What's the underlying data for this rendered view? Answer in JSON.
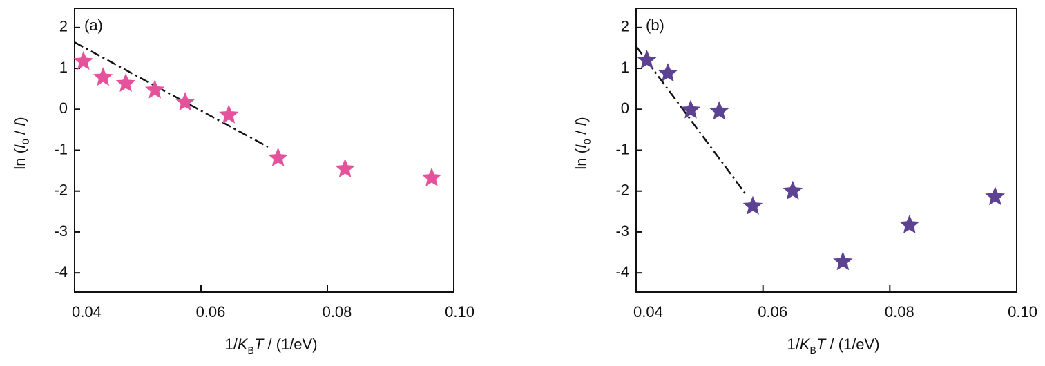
{
  "chart_data": [
    {
      "type": "scatter",
      "title": "(a)",
      "x_label": [
        "1/",
        "K",
        "B",
        "T",
        " / (1/eV)"
      ],
      "y_label": [
        "ln (",
        "I",
        "0",
        " / ",
        "I",
        ")"
      ],
      "xlim": [
        0.04,
        0.1
      ],
      "ylim": [
        -4.47,
        2.47
      ],
      "xticks": [
        0.04,
        0.06,
        0.08,
        {
          "value": 0.1,
          "label": "0.10"
        }
      ],
      "yticks": [
        2,
        1,
        0,
        -1,
        -2,
        -3,
        -4
      ],
      "series": [
        {
          "color": "#e4529c",
          "x": [
            0.0414,
            0.0445,
            0.0481,
            0.0527,
            0.0575,
            0.0644,
            0.0722,
            0.0828,
            0.0965
          ],
          "values": [
            1.17,
            0.78,
            0.63,
            0.47,
            0.17,
            -0.14,
            -1.19,
            -1.46,
            -1.68
          ]
        }
      ],
      "fit": {
        "color": "#111111",
        "x": [
          0.04,
          0.0706
        ],
        "values": [
          1.64,
          -0.92
        ]
      }
    },
    {
      "type": "scatter",
      "title": "(b)",
      "x_label": [
        "1/",
        "K",
        "B",
        "T",
        " / (1/eV)"
      ],
      "y_label": [
        "ln (",
        "I",
        "0",
        " / ",
        "I",
        ")"
      ],
      "xlim": [
        0.04,
        0.1
      ],
      "ylim": [
        -4.47,
        2.47
      ],
      "xticks": [
        0.04,
        0.06,
        0.08,
        {
          "value": 0.1,
          "label": "0.10"
        }
      ],
      "yticks": [
        2,
        1,
        0,
        -1,
        -2,
        -3,
        -4
      ],
      "series": [
        {
          "color": "#5d4193",
          "x": [
            0.0417,
            0.045,
            0.0486,
            0.0531,
            0.0584,
            0.0647,
            0.0726,
            0.0831,
            0.0966
          ],
          "values": [
            1.2,
            0.88,
            -0.02,
            -0.05,
            -2.37,
            -2.0,
            -3.73,
            -2.83,
            -2.14
          ]
        }
      ],
      "fit": {
        "color": "#111111",
        "x": [
          0.04,
          0.0573
        ],
        "values": [
          1.54,
          -2.08
        ]
      }
    }
  ]
}
